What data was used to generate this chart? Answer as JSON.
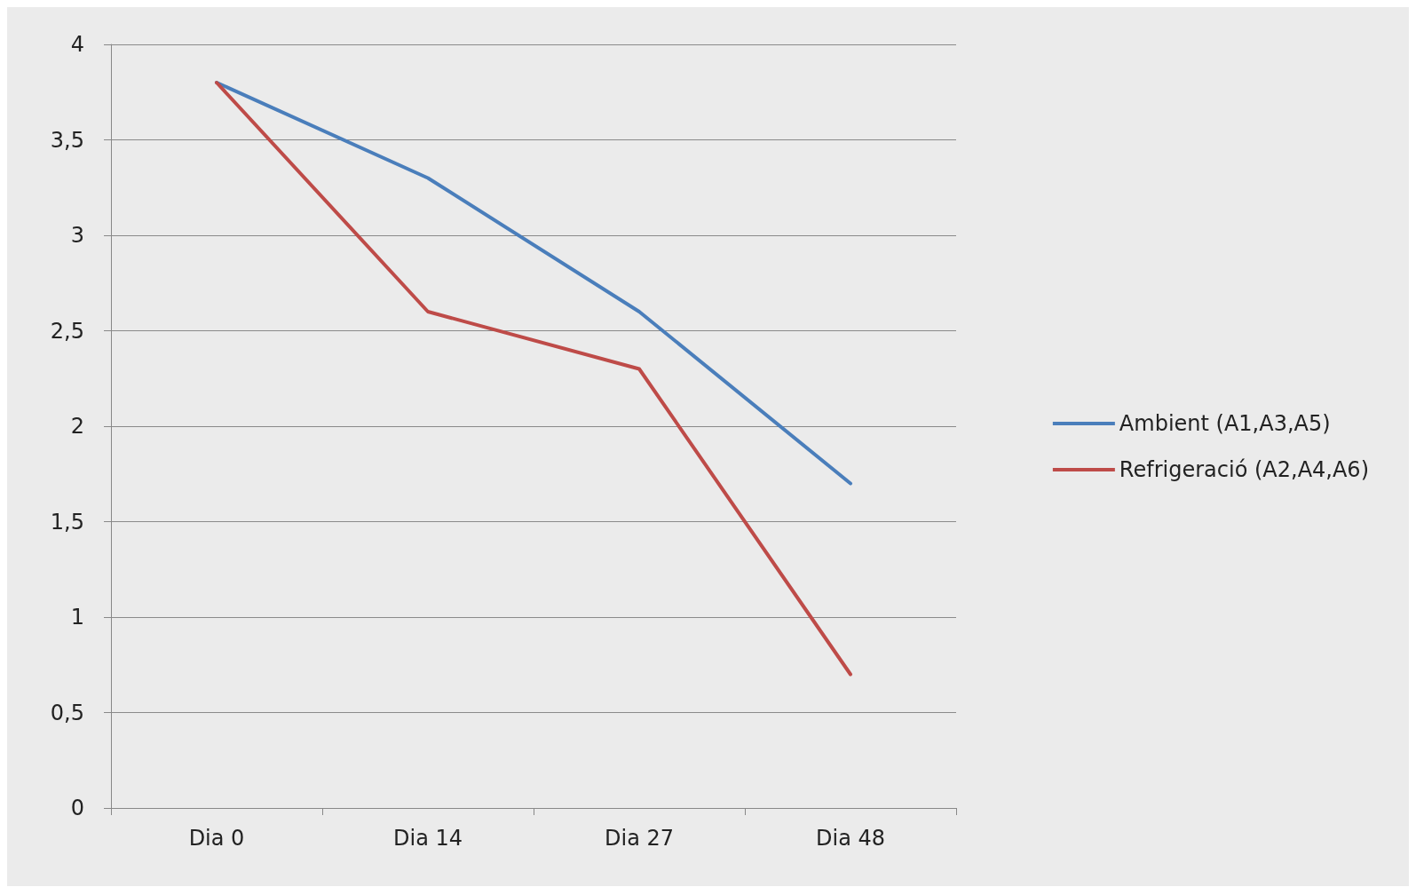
{
  "chart_data": {
    "type": "line",
    "categories": [
      "Dia 0",
      "Dia 14",
      "Dia 27",
      "Dia 48"
    ],
    "series": [
      {
        "name": "Ambient (A1,A3,A5)",
        "color": "#4a7ebb",
        "values": [
          3.8,
          3.3,
          2.6,
          1.7
        ]
      },
      {
        "name": "Refrigeració (A2,A4,A6)",
        "color": "#be4b48",
        "values": [
          3.8,
          2.6,
          2.3,
          0.7
        ]
      }
    ],
    "ylim": [
      0,
      4
    ],
    "yticks": [
      0,
      {
        "value": 0.5,
        "label": "0,5"
      },
      1,
      {
        "value": 1.5,
        "label": "1,5"
      },
      2,
      {
        "value": 2.5,
        "label": "2,5"
      },
      3,
      {
        "value": 3.5,
        "label": "3,5"
      },
      4
    ],
    "grid": "y",
    "legend": "right",
    "marker": "none",
    "line_style": "solid"
  }
}
